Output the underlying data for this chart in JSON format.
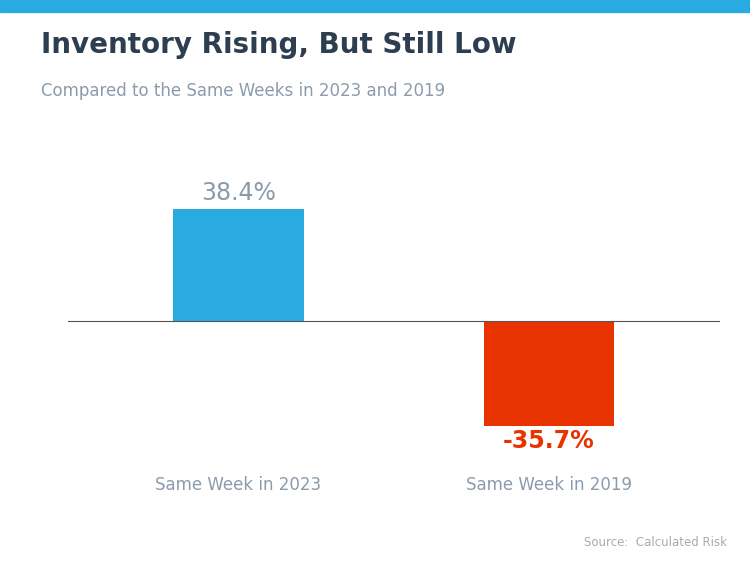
{
  "title": "Inventory Rising, But Still Low",
  "subtitle": "Compared to the Same Weeks in 2023 and 2019",
  "categories": [
    "Same Week in 2023",
    "Same Week in 2019"
  ],
  "values": [
    38.4,
    -35.7
  ],
  "bar_colors": [
    "#29ABE2",
    "#E83300"
  ],
  "label_colors": [
    "#8C9BAB",
    "#E83300"
  ],
  "value_labels": [
    "38.4%",
    "-35.7%"
  ],
  "source": "Source:  Calculated Risk",
  "title_fontsize": 20,
  "subtitle_fontsize": 12,
  "label_fontsize": 12,
  "value_fontsize": 17,
  "source_fontsize": 8.5,
  "background_color": "#FFFFFF",
  "accent_color": "#29ABE2",
  "title_color": "#2C3E50",
  "subtitle_color": "#8C9BAB",
  "category_color": "#8C9BAB",
  "source_color": "#AAAAAA",
  "ylim": [
    -48,
    52
  ],
  "bar_width": 0.42
}
